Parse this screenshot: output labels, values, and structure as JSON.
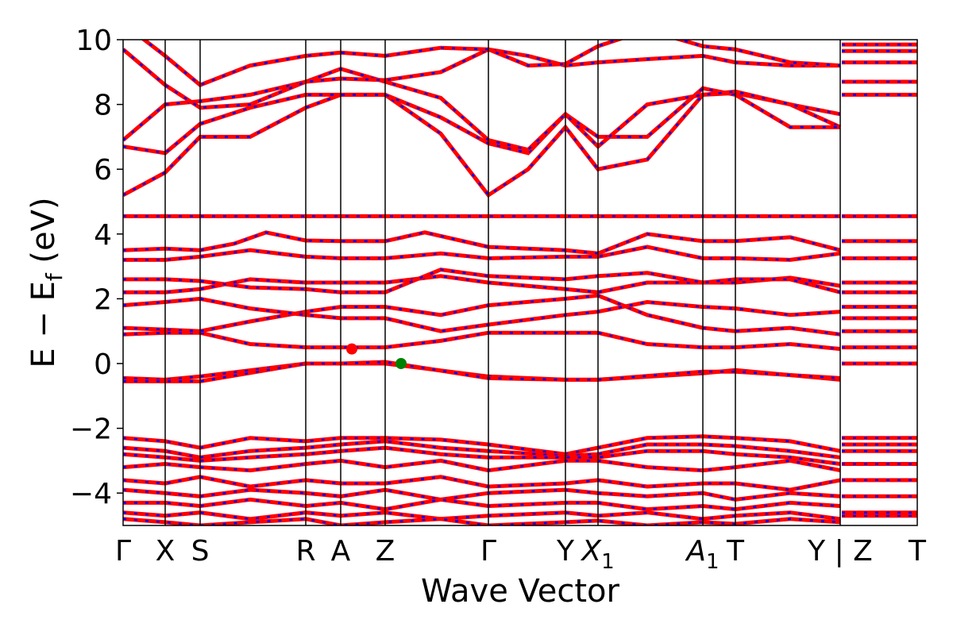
{
  "chart_data": {
    "type": "line",
    "title": "",
    "xlabel": "Wave Vector",
    "ylabel": "E − E",
    "ylabel_sub": "f",
    "ylabel_unit": " (eV)",
    "ylim": [
      -5,
      10
    ],
    "yticks": [
      {
        "value": 10,
        "label": "10"
      },
      {
        "value": 8,
        "label": "8"
      },
      {
        "value": 6,
        "label": "6"
      },
      {
        "value": 4,
        "label": "4"
      },
      {
        "value": 2,
        "label": "2"
      },
      {
        "value": 0,
        "label": "0"
      },
      {
        "value": -2,
        "label": "−2"
      },
      {
        "value": -4,
        "label": "−4"
      }
    ],
    "xlim": [
      0,
      1
    ],
    "kpoints": [
      {
        "x": 0.0,
        "label": "Γ"
      },
      {
        "x": 0.053,
        "label": "X"
      },
      {
        "x": 0.097,
        "label": "S"
      },
      {
        "x": 0.23,
        "label": "R"
      },
      {
        "x": 0.274,
        "label": "A"
      },
      {
        "x": 0.33,
        "label": "Z"
      },
      {
        "x": 0.46,
        "label": "Γ"
      },
      {
        "x": 0.557,
        "label": "Y"
      },
      {
        "x": 0.598,
        "label": "X",
        "sub": "1"
      },
      {
        "x": 0.73,
        "label": "A",
        "sub": "1"
      },
      {
        "x": 0.771,
        "label": "T"
      },
      {
        "x": 0.903,
        "label": "Y | Z"
      },
      {
        "x": 1.0,
        "label": "T"
      }
    ],
    "series_colors": {
      "red": "#ff0000",
      "blue": "#0000ff",
      "frame": "#000000"
    },
    "band_style": "red solid with blue dashed overlay",
    "markers": [
      {
        "x": 0.288,
        "y": 0.45,
        "color": "#ff0000"
      },
      {
        "x": 0.35,
        "y": 0.0,
        "color": "#008000"
      }
    ],
    "flat_bands": [
      4.55,
      3.78,
      3.25,
      2.5,
      2.2,
      1.75,
      1.4,
      1.0,
      0.5,
      0.0
    ],
    "bands": [
      {
        "x": [
          0,
          0.053,
          0.097,
          0.23,
          0.274,
          0.33,
          0.46,
          0.557,
          0.598,
          0.73,
          0.771,
          0.903
        ],
        "y": [
          -0.45,
          -0.5,
          -0.4,
          0.0,
          0.0,
          0.0,
          -0.4,
          -0.5,
          -0.5,
          -0.3,
          -0.2,
          -0.5
        ]
      },
      {
        "x": [
          0,
          0.053,
          0.097,
          0.23,
          0.274,
          0.33,
          0.46,
          0.557,
          0.598,
          0.73,
          0.771,
          0.903
        ],
        "y": [
          -0.55,
          -0.55,
          -0.55,
          0.0,
          0.0,
          0.05,
          -0.45,
          -0.5,
          -0.5,
          -0.25,
          -0.25,
          -0.45
        ]
      },
      {
        "x": [
          0,
          0.053,
          0.097,
          0.16,
          0.23,
          0.274,
          0.33,
          0.4,
          0.46,
          0.557,
          0.598,
          0.66,
          0.73,
          0.771,
          0.84,
          0.903
        ],
        "y": [
          0.9,
          0.95,
          0.95,
          0.6,
          0.5,
          0.5,
          0.5,
          0.7,
          0.95,
          0.95,
          0.95,
          0.6,
          0.5,
          0.5,
          0.6,
          0.45
        ]
      },
      {
        "x": [
          0,
          0.053,
          0.097,
          0.16,
          0.23,
          0.274,
          0.33,
          0.4,
          0.46,
          0.557,
          0.598,
          0.66,
          0.73,
          0.771,
          0.84,
          0.903
        ],
        "y": [
          1.1,
          1.05,
          1.0,
          1.3,
          1.6,
          1.75,
          1.75,
          1.5,
          1.8,
          2.0,
          2.1,
          1.5,
          1.1,
          1.0,
          1.1,
          0.9
        ]
      },
      {
        "x": [
          0,
          0.053,
          0.097,
          0.16,
          0.23,
          0.274,
          0.33,
          0.4,
          0.46,
          0.557,
          0.598,
          0.66,
          0.73,
          0.771,
          0.84,
          0.903
        ],
        "y": [
          1.8,
          1.9,
          2.0,
          1.7,
          1.5,
          1.4,
          1.4,
          1.0,
          1.2,
          1.5,
          1.6,
          1.9,
          1.75,
          1.7,
          1.5,
          1.6
        ]
      },
      {
        "x": [
          0,
          0.053,
          0.097,
          0.16,
          0.23,
          0.274,
          0.33,
          0.4,
          0.46,
          0.557,
          0.598,
          0.66,
          0.73,
          0.771,
          0.84,
          0.903
        ],
        "y": [
          2.2,
          2.2,
          2.3,
          2.6,
          2.5,
          2.5,
          2.5,
          2.7,
          2.5,
          2.3,
          2.2,
          2.5,
          2.5,
          2.5,
          2.65,
          2.4
        ]
      },
      {
        "x": [
          0,
          0.053,
          0.097,
          0.16,
          0.23,
          0.274,
          0.33,
          0.4,
          0.46,
          0.557,
          0.598,
          0.66,
          0.73,
          0.771,
          0.84,
          0.903
        ],
        "y": [
          2.6,
          2.6,
          2.55,
          2.35,
          2.3,
          2.2,
          2.2,
          2.9,
          2.7,
          2.6,
          2.7,
          2.8,
          2.5,
          2.6,
          2.6,
          2.2
        ]
      },
      {
        "x": [
          0,
          0.053,
          0.097,
          0.16,
          0.23,
          0.274,
          0.33,
          0.4,
          0.46,
          0.557,
          0.598,
          0.66,
          0.73,
          0.771,
          0.84,
          0.903
        ],
        "y": [
          3.2,
          3.2,
          3.3,
          3.5,
          3.3,
          3.25,
          3.25,
          3.4,
          3.25,
          3.3,
          3.3,
          3.6,
          3.25,
          3.25,
          3.2,
          3.4
        ]
      },
      {
        "x": [
          0,
          0.053,
          0.097,
          0.14,
          0.18,
          0.23,
          0.274,
          0.33,
          0.38,
          0.46,
          0.557,
          0.598,
          0.66,
          0.73,
          0.771,
          0.84,
          0.903
        ],
        "y": [
          3.5,
          3.55,
          3.5,
          3.7,
          4.05,
          3.8,
          3.78,
          3.78,
          4.05,
          3.6,
          3.5,
          3.4,
          4.0,
          3.78,
          3.78,
          3.9,
          3.5
        ]
      },
      {
        "x": [
          0,
          0.053,
          0.097,
          0.23,
          0.274,
          0.33,
          0.46,
          0.557,
          0.598,
          0.73,
          0.771,
          0.903
        ],
        "y": [
          4.55,
          4.55,
          4.55,
          4.55,
          4.55,
          4.55,
          4.55,
          4.55,
          4.55,
          4.55,
          4.55,
          4.55
        ]
      },
      {
        "x": [
          0,
          0.053,
          0.097,
          0.16,
          0.23,
          0.274,
          0.33,
          0.4,
          0.46,
          0.51,
          0.557,
          0.598,
          0.66,
          0.73,
          0.771,
          0.84,
          0.903
        ],
        "y": [
          5.2,
          5.9,
          7.0,
          7.0,
          7.9,
          8.3,
          8.3,
          7.1,
          5.2,
          6.0,
          7.3,
          6.0,
          6.3,
          8.3,
          8.35,
          8.0,
          7.3
        ]
      },
      {
        "x": [
          0,
          0.053,
          0.097,
          0.16,
          0.23,
          0.274,
          0.33,
          0.4,
          0.46,
          0.51,
          0.557,
          0.598,
          0.66,
          0.73,
          0.771,
          0.84,
          0.903
        ],
        "y": [
          6.7,
          6.5,
          7.4,
          7.9,
          8.3,
          8.3,
          8.3,
          7.6,
          6.8,
          6.5,
          7.7,
          7.0,
          7.0,
          8.5,
          8.3,
          7.3,
          7.3
        ]
      },
      {
        "x": [
          0,
          0.053,
          0.097,
          0.16,
          0.23,
          0.274,
          0.33,
          0.4,
          0.46,
          0.51,
          0.557,
          0.598,
          0.66,
          0.73,
          0.771,
          0.84,
          0.903
        ],
        "y": [
          6.9,
          8.0,
          8.1,
          8.3,
          8.7,
          9.1,
          8.7,
          8.2,
          6.9,
          6.6,
          7.7,
          6.7,
          8.0,
          8.3,
          8.4,
          8.0,
          7.7
        ]
      },
      {
        "x": [
          0,
          0.053,
          0.097,
          0.16,
          0.23,
          0.274,
          0.33,
          0.4,
          0.46,
          0.51,
          0.557,
          0.598,
          0.66,
          0.73,
          0.771,
          0.84,
          0.903
        ],
        "y": [
          9.7,
          8.6,
          7.9,
          8.0,
          8.7,
          8.8,
          8.75,
          9.0,
          9.7,
          9.5,
          9.2,
          9.3,
          9.4,
          9.5,
          9.3,
          9.2,
          9.2
        ]
      },
      {
        "x": [
          0,
          0.053,
          0.097,
          0.16,
          0.23,
          0.274,
          0.33,
          0.4,
          0.46,
          0.51,
          0.557,
          0.598,
          0.66,
          0.73,
          0.771,
          0.84,
          0.903
        ],
        "y": [
          10.5,
          9.5,
          8.6,
          9.2,
          9.5,
          9.6,
          9.5,
          9.75,
          9.7,
          9.2,
          9.25,
          9.8,
          10.3,
          9.8,
          9.7,
          9.3,
          9.2
        ]
      }
    ],
    "valence_bands": [
      {
        "x": [
          0,
          0.053,
          0.097,
          0.16,
          0.23,
          0.274,
          0.33,
          0.4,
          0.46,
          0.557,
          0.598,
          0.66,
          0.73,
          0.771,
          0.84,
          0.903
        ],
        "y": [
          -2.3,
          -2.4,
          -2.6,
          -2.3,
          -2.4,
          -2.3,
          -2.3,
          -2.35,
          -2.5,
          -2.8,
          -2.6,
          -2.3,
          -2.25,
          -2.3,
          -2.4,
          -2.7
        ]
      },
      {
        "x": [
          0,
          0.053,
          0.097,
          0.16,
          0.23,
          0.274,
          0.33,
          0.4,
          0.46,
          0.557,
          0.598,
          0.66,
          0.73,
          0.771,
          0.84,
          0.903
        ],
        "y": [
          -2.6,
          -2.7,
          -2.9,
          -2.7,
          -2.6,
          -2.5,
          -2.4,
          -2.6,
          -2.7,
          -2.85,
          -2.8,
          -2.5,
          -2.5,
          -2.55,
          -2.7,
          -2.9
        ]
      },
      {
        "x": [
          0,
          0.053,
          0.097,
          0.16,
          0.23,
          0.274,
          0.33,
          0.4,
          0.46,
          0.557,
          0.598,
          0.66,
          0.73,
          0.771,
          0.84,
          0.903
        ],
        "y": [
          -2.8,
          -2.9,
          -3.0,
          -2.9,
          -2.8,
          -2.7,
          -2.6,
          -2.8,
          -2.9,
          -2.9,
          -2.9,
          -2.7,
          -2.7,
          -2.8,
          -2.9,
          -3.1
        ]
      },
      {
        "x": [
          0,
          0.053,
          0.097,
          0.16,
          0.23,
          0.274,
          0.33,
          0.4,
          0.46,
          0.557,
          0.598,
          0.66,
          0.73,
          0.771,
          0.84,
          0.903
        ],
        "y": [
          -3.2,
          -3.1,
          -3.2,
          -3.3,
          -3.1,
          -3.0,
          -3.2,
          -3.0,
          -3.3,
          -3.0,
          -3.0,
          -3.2,
          -3.3,
          -3.2,
          -3.0,
          -3.3
        ]
      },
      {
        "x": [
          0,
          0.053,
          0.097,
          0.16,
          0.23,
          0.274,
          0.33,
          0.4,
          0.46,
          0.557,
          0.598,
          0.66,
          0.73,
          0.771,
          0.84,
          0.903
        ],
        "y": [
          -3.6,
          -3.7,
          -3.5,
          -3.8,
          -3.6,
          -3.7,
          -3.7,
          -3.5,
          -3.8,
          -3.7,
          -3.6,
          -3.8,
          -3.7,
          -3.7,
          -3.9,
          -3.6
        ]
      },
      {
        "x": [
          0,
          0.053,
          0.097,
          0.16,
          0.23,
          0.274,
          0.33,
          0.4,
          0.46,
          0.557,
          0.598,
          0.66,
          0.73,
          0.771,
          0.84,
          0.903
        ],
        "y": [
          -3.9,
          -4.0,
          -4.1,
          -3.9,
          -4.0,
          -4.1,
          -3.9,
          -4.2,
          -4.0,
          -3.9,
          -4.0,
          -4.1,
          -4.0,
          -4.2,
          -4.0,
          -4.1
        ]
      },
      {
        "x": [
          0,
          0.053,
          0.097,
          0.16,
          0.23,
          0.274,
          0.33,
          0.4,
          0.46,
          0.557,
          0.598,
          0.66,
          0.73,
          0.771,
          0.84,
          0.903
        ],
        "y": [
          -4.3,
          -4.3,
          -4.4,
          -4.2,
          -4.4,
          -4.3,
          -4.5,
          -4.2,
          -4.4,
          -4.3,
          -4.3,
          -4.5,
          -4.4,
          -4.5,
          -4.3,
          -4.4
        ]
      },
      {
        "x": [
          0,
          0.053,
          0.097,
          0.16,
          0.23,
          0.274,
          0.33,
          0.4,
          0.46,
          0.557,
          0.598,
          0.66,
          0.73,
          0.771,
          0.84,
          0.903
        ],
        "y": [
          -4.6,
          -4.7,
          -4.6,
          -4.8,
          -4.6,
          -4.7,
          -4.6,
          -4.8,
          -4.7,
          -4.6,
          -4.7,
          -4.6,
          -4.8,
          -4.7,
          -4.6,
          -4.8
        ]
      },
      {
        "x": [
          0,
          0.053,
          0.097,
          0.16,
          0.23,
          0.274,
          0.33,
          0.4,
          0.46,
          0.557,
          0.598,
          0.66,
          0.73,
          0.771,
          0.84,
          0.903
        ],
        "y": [
          -4.8,
          -4.9,
          -5.0,
          -4.9,
          -4.8,
          -5.0,
          -4.9,
          -4.8,
          -5.0,
          -4.9,
          -4.85,
          -5.0,
          -4.9,
          -4.95,
          -4.8,
          -4.9
        ]
      }
    ],
    "last_segment_bands": [
      -4.7,
      -4.6,
      -4.1,
      -3.6,
      -3.1,
      -2.7,
      -2.5,
      -2.3,
      0.0,
      0.5,
      1.0,
      1.4,
      1.75,
      2.2,
      2.5,
      3.25,
      3.78,
      4.55,
      8.3,
      8.7,
      9.3,
      9.65,
      9.85
    ]
  }
}
